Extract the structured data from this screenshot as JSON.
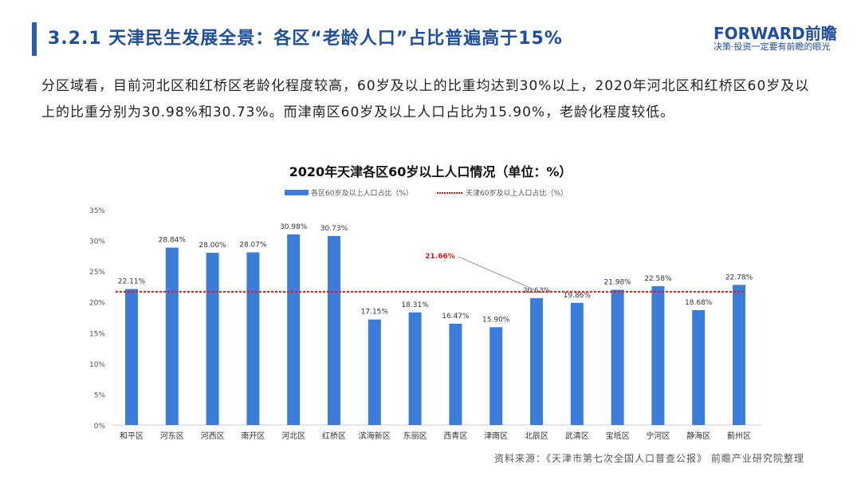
{
  "header": {
    "title": "3.2.1 天津民生发展全景：各区“老龄人口”占比普遍高于15%",
    "logo": "FORWARD前瞻",
    "slogan": "决策·投资一定要有前瞻的眼光"
  },
  "intro": "分区域看，目前河北区和红桥区老龄化程度较高，60岁及以上的比重均达到30%以上，2020年河北区和红桥区60岁及以上的比重分别为30.98%和30.73%。而津南区60岁及以上人口占比为15.90%，老龄化程度较低。",
  "source": "资料来源：《天津市第七次全国人口普查公报》 前瞻产业研究院整理",
  "chart_data": {
    "type": "bar",
    "title": "2020年天津各区60岁以上人口情况（单位：%）",
    "categories": [
      "和平区",
      "河东区",
      "河西区",
      "南开区",
      "河北区",
      "红桥区",
      "滨海新区",
      "东丽区",
      "西青区",
      "津南区",
      "北辰区",
      "武清区",
      "宝坻区",
      "宁河区",
      "静海区",
      "蓟州区"
    ],
    "series": [
      {
        "name": "各区60岁及以上人口占比（%）",
        "values": [
          22.11,
          28.84,
          28.0,
          28.07,
          30.98,
          30.73,
          17.15,
          18.31,
          16.47,
          15.9,
          20.63,
          19.86,
          21.98,
          22.58,
          18.68,
          22.78
        ],
        "color": "#3b7dd8"
      }
    ],
    "reference_line": {
      "name": "天津60岁及以上人口占比（%）",
      "value": 21.66,
      "label": "21.66%",
      "color": "#d42020"
    },
    "ylim": [
      0,
      35
    ],
    "yticks": [
      "0%",
      "5%",
      "10%",
      "15%",
      "20%",
      "25%",
      "30%",
      "35%"
    ],
    "legend": "top",
    "grid": false
  }
}
